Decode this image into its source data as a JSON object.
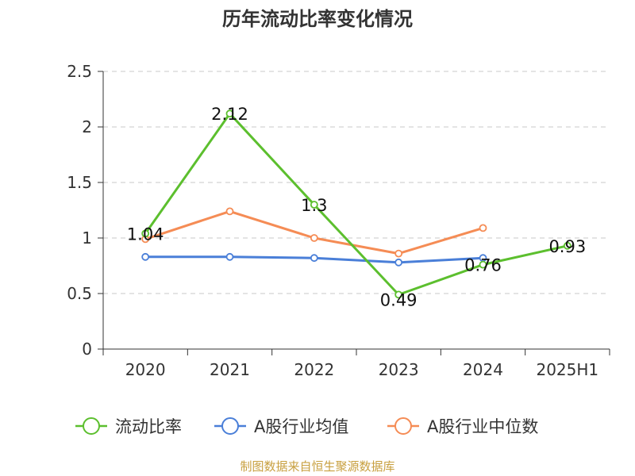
{
  "chart_data": {
    "type": "line",
    "title": "历年流动比率变化情况",
    "categories": [
      "2020",
      "2021",
      "2022",
      "2023",
      "2024",
      "2025H1"
    ],
    "ylim": [
      0,
      2.5
    ],
    "yticks": [
      "0",
      "0.5",
      "1",
      "1.5",
      "2",
      "2.5"
    ],
    "grid": true,
    "legend_position": "bottom",
    "series": [
      {
        "name": "流动比率",
        "color": "#5cbf2e",
        "values": [
          1.04,
          2.12,
          1.3,
          0.49,
          0.76,
          0.93
        ],
        "labels": [
          "1.04",
          "2.12",
          "1.3",
          "0.49",
          "0.76",
          "0.93"
        ]
      },
      {
        "name": "A股行业均值",
        "color": "#4a7fd8",
        "values": [
          0.83,
          0.83,
          0.82,
          0.78,
          0.82,
          null
        ]
      },
      {
        "name": "A股行业中位数",
        "color": "#f58c55",
        "values": [
          0.99,
          1.24,
          1.0,
          0.86,
          1.09,
          null
        ]
      }
    ]
  },
  "source": "制图数据来自恒生聚源数据库"
}
